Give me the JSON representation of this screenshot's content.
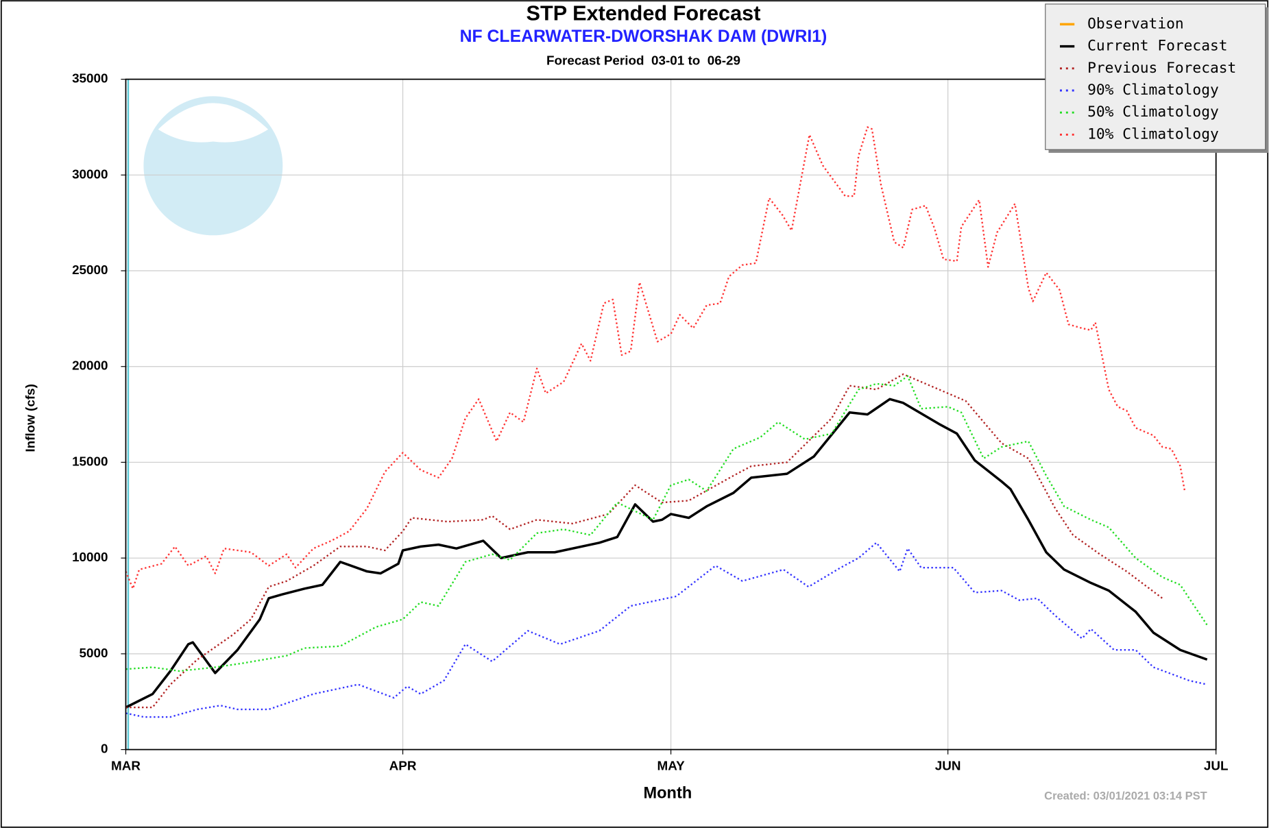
{
  "chart_data": {
    "type": "line",
    "title": "STP Extended Forecast",
    "subtitle": "NF CLEARWATER-DWORSHAK DAM (DWRI1)",
    "period": "Forecast Period  03-01 to  06-29",
    "x_label": "Month",
    "y_label": "Inflow (cfs)",
    "created": "Created: 03/01/2021 03:14 PST",
    "xlim": [
      0,
      122
    ],
    "xticks": [
      {
        "value": 0,
        "label": "MAR"
      },
      {
        "value": 31,
        "label": "APR"
      },
      {
        "value": 61,
        "label": "MAY"
      },
      {
        "value": 92,
        "label": "JUN"
      },
      {
        "value": 122,
        "label": "JUL"
      }
    ],
    "ylim": [
      0,
      35000
    ],
    "yticks": [
      0,
      5000,
      10000,
      15000,
      20000,
      25000,
      30000,
      35000
    ],
    "grid": true,
    "legend": "top-right",
    "series": [
      {
        "name": "Observation",
        "color": "#ffa500",
        "style": "solid",
        "x": [],
        "values": []
      },
      {
        "name": "Current Forecast",
        "color": "#000000",
        "style": "solid",
        "x": [
          0,
          3,
          5,
          7,
          7.5,
          10,
          12.5,
          15,
          16,
          17.5,
          20,
          22,
          24,
          27,
          28.5,
          30.5,
          31,
          33,
          35,
          37,
          40,
          42,
          45,
          48,
          53,
          55,
          57,
          59,
          60,
          61,
          63,
          65,
          68,
          70,
          74,
          77,
          81,
          83,
          85.5,
          87,
          91,
          93,
          95,
          98,
          99,
          101,
          103,
          105,
          108,
          110,
          113,
          115,
          118,
          121
        ],
        "values": [
          2200,
          2900,
          4100,
          5500,
          5600,
          4000,
          5200,
          6800,
          7900,
          8100,
          8400,
          8600,
          9800,
          9300,
          9200,
          9700,
          10400,
          10600,
          10700,
          10500,
          10900,
          10000,
          10300,
          10300,
          10800,
          11100,
          12800,
          11900,
          12000,
          12300,
          12100,
          12700,
          13400,
          14200,
          14400,
          15300,
          17600,
          17500,
          18300,
          18100,
          17000,
          16500,
          15100,
          14000,
          13600,
          12000,
          10300,
          9400,
          8700,
          8300,
          7200,
          6100,
          5200,
          4700
        ]
      },
      {
        "name": "Previous Forecast",
        "color": "#b22222",
        "style": "dotted",
        "x": [
          0,
          3,
          5,
          8,
          12,
          14,
          16,
          18,
          21,
          24,
          27,
          29,
          31,
          32,
          36,
          40,
          41,
          43,
          46,
          50,
          54,
          56,
          57,
          60,
          63,
          68,
          70,
          74,
          79,
          81,
          84,
          87,
          89,
          91,
          94,
          96,
          98,
          101,
          104,
          106,
          109,
          112,
          116
        ],
        "values": [
          2200,
          2200,
          3400,
          4700,
          6000,
          6800,
          8500,
          8800,
          9600,
          10600,
          10600,
          10400,
          11400,
          12100,
          11900,
          12000,
          12200,
          11500,
          12000,
          11800,
          12300,
          13300,
          13800,
          12900,
          13000,
          14300,
          14800,
          15000,
          17300,
          19000,
          18800,
          19600,
          19200,
          18800,
          18200,
          17100,
          16000,
          15200,
          12600,
          11200,
          10200,
          9300,
          7900
        ]
      },
      {
        "name": "90% Climatology",
        "color": "#3333ff",
        "style": "dotted",
        "x": [
          0,
          2,
          5,
          8,
          10.6,
          12.5,
          16,
          21,
          26,
          30,
          31.5,
          33,
          35.6,
          38,
          41,
          45,
          48.6,
          53,
          56.5,
          61.6,
          66,
          69,
          73.6,
          76.4,
          80,
          82,
          84,
          86.6,
          87.5,
          89,
          92.6,
          95,
          98,
          100,
          102,
          104,
          107,
          108,
          110.6,
          113,
          115,
          119,
          121
        ],
        "values": [
          1900,
          1700,
          1700,
          2100,
          2300,
          2100,
          2100,
          2900,
          3400,
          2700,
          3300,
          2900,
          3600,
          5500,
          4600,
          6200,
          5500,
          6200,
          7500,
          8000,
          9600,
          8800,
          9400,
          8500,
          9500,
          10000,
          10800,
          9300,
          10500,
          9500,
          9500,
          8200,
          8300,
          7800,
          7900,
          7000,
          5800,
          6300,
          5200,
          5200,
          4300,
          3600,
          3400
        ]
      },
      {
        "name": "50% Climatology",
        "color": "#22dd22",
        "style": "dotted",
        "x": [
          0,
          3,
          6,
          10,
          13,
          18,
          20,
          24,
          28,
          31,
          33,
          35,
          38,
          41,
          43,
          46,
          49,
          52,
          55,
          59,
          61,
          63,
          65,
          68,
          71,
          73,
          76,
          79,
          82,
          84,
          86,
          87.5,
          89,
          92,
          93.5,
          96,
          98,
          101,
          103,
          105,
          108,
          110,
          113,
          116,
          118,
          120,
          121
        ],
        "values": [
          4200,
          4300,
          4100,
          4300,
          4500,
          4900,
          5300,
          5400,
          6400,
          6800,
          7700,
          7500,
          9800,
          10200,
          9900,
          11300,
          11500,
          11200,
          12900,
          12000,
          13800,
          14100,
          13500,
          15700,
          16300,
          17100,
          16200,
          16500,
          18800,
          19100,
          19000,
          19500,
          17800,
          17900,
          17600,
          15200,
          15800,
          16100,
          14300,
          12700,
          12000,
          11600,
          10000,
          9000,
          8600,
          7200,
          6500
        ]
      },
      {
        "name": "10% Climatology",
        "color": "#ff3333",
        "style": "dotted",
        "x": [
          0,
          0.8,
          1.5,
          4,
          5.5,
          7,
          9,
          10,
          11,
          14,
          16,
          18,
          19,
          21,
          23,
          25,
          27,
          29,
          31,
          33,
          35,
          36.5,
          38,
          39.5,
          41.5,
          43,
          44.5,
          46,
          47,
          49,
          51,
          52,
          53.5,
          54.5,
          55.5,
          56.5,
          57.5,
          59.5,
          61,
          62,
          63.5,
          65,
          66.5,
          67.5,
          69,
          70.5,
          72,
          73.5,
          74.5,
          76.5,
          78,
          80.5,
          81.5,
          82,
          83,
          83.5,
          84.5,
          86,
          87,
          88,
          89.5,
          90.5,
          91.5,
          93,
          93.5,
          95.5,
          96.5,
          97.5,
          99.5,
          101,
          101.5,
          103,
          104.5,
          105.5,
          107,
          108,
          108.5,
          110,
          111,
          112,
          113,
          115,
          116,
          117,
          118,
          118.5
        ],
        "values": [
          9300,
          8400,
          9400,
          9700,
          10600,
          9600,
          10100,
          9200,
          10500,
          10300,
          9600,
          10200,
          9500,
          10500,
          10900,
          11400,
          12600,
          14500,
          15500,
          14600,
          14200,
          15200,
          17300,
          18300,
          16100,
          17600,
          17100,
          19900,
          18600,
          19200,
          21200,
          20300,
          23300,
          23500,
          20600,
          20800,
          24400,
          21300,
          21700,
          22700,
          22000,
          23200,
          23300,
          24700,
          25300,
          25400,
          28800,
          27900,
          27100,
          32100,
          30500,
          28900,
          28900,
          31000,
          32500,
          32400,
          29500,
          26500,
          26200,
          28200,
          28400,
          27200,
          25600,
          25500,
          27300,
          28700,
          25200,
          27000,
          28500,
          24100,
          23400,
          24900,
          24000,
          22200,
          22000,
          21900,
          22300,
          18800,
          17900,
          17700,
          16800,
          16400,
          15800,
          15700,
          14800,
          13500
        ]
      }
    ]
  }
}
